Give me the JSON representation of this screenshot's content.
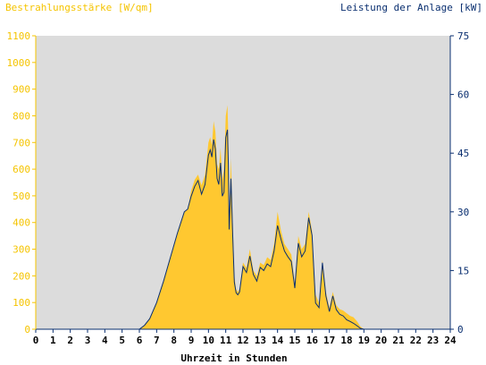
{
  "chart_data": {
    "type": "area",
    "title_left": "Bestrahlungsstärke [W/qm]",
    "title_right": "Leistung der Anlage [kW]",
    "xlabel": "Uhrzeit in Stunden",
    "xlim": [
      0,
      24
    ],
    "x_ticks": [
      "0",
      "1",
      "2",
      "3",
      "4",
      "5",
      "6",
      "7",
      "8",
      "9",
      "10",
      "11",
      "12",
      "13",
      "14",
      "15",
      "16",
      "17",
      "18",
      "19",
      "20",
      "21",
      "22",
      "23",
      "24"
    ],
    "y_left": {
      "lim": [
        0,
        1100
      ],
      "ticks": [
        "0",
        "100",
        "200",
        "300",
        "400",
        "500",
        "600",
        "700",
        "800",
        "900",
        "1000",
        "1100"
      ],
      "color": "#f5c400"
    },
    "y_right": {
      "lim": [
        0,
        75
      ],
      "ticks": [
        "0",
        "15",
        "30",
        "45",
        "60",
        "75"
      ],
      "color": "#0a2f70"
    },
    "plot_background": "#dcdcdc",
    "series": [
      {
        "name": "Bestrahlungsstärke",
        "axis": "left",
        "style": "area",
        "color": "#ffc830",
        "x": [
          0,
          6.0,
          6.3,
          6.6,
          7.0,
          7.4,
          7.8,
          8.2,
          8.6,
          8.8,
          9.0,
          9.2,
          9.4,
          9.6,
          9.8,
          10.0,
          10.1,
          10.2,
          10.3,
          10.4,
          10.5,
          10.6,
          10.7,
          10.8,
          10.9,
          11.0,
          11.1,
          11.15,
          11.2,
          11.3,
          11.4,
          11.5,
          11.6,
          11.7,
          11.8,
          12.0,
          12.2,
          12.4,
          12.6,
          12.8,
          13.0,
          13.2,
          13.4,
          13.6,
          13.8,
          14.0,
          14.2,
          14.4,
          14.6,
          14.8,
          15.0,
          15.2,
          15.4,
          15.6,
          15.8,
          16.0,
          16.2,
          16.4,
          16.6,
          16.8,
          17.0,
          17.2,
          17.4,
          17.6,
          17.8,
          18.0,
          18.2,
          18.4,
          18.6,
          18.8,
          19.0,
          24
        ],
        "values": [
          0,
          0,
          15,
          40,
          100,
          180,
          270,
          360,
          440,
          450,
          520,
          560,
          580,
          540,
          580,
          700,
          720,
          690,
          780,
          740,
          620,
          600,
          680,
          560,
          600,
          800,
          840,
          720,
          420,
          640,
          420,
          200,
          150,
          140,
          150,
          250,
          230,
          300,
          220,
          200,
          250,
          240,
          270,
          260,
          320,
          440,
          370,
          320,
          300,
          280,
          170,
          350,
          300,
          320,
          440,
          370,
          130,
          100,
          260,
          140,
          80,
          140,
          90,
          75,
          70,
          60,
          50,
          45,
          30,
          10,
          0,
          0
        ]
      },
      {
        "name": "Leistung der Anlage",
        "axis": "right",
        "style": "line",
        "color": "#0a2f70",
        "x": [
          0,
          6.0,
          6.3,
          6.6,
          7.0,
          7.4,
          7.8,
          8.2,
          8.6,
          8.8,
          9.0,
          9.2,
          9.4,
          9.6,
          9.8,
          10.0,
          10.1,
          10.2,
          10.3,
          10.4,
          10.5,
          10.6,
          10.7,
          10.8,
          10.9,
          11.0,
          11.1,
          11.15,
          11.2,
          11.3,
          11.4,
          11.5,
          11.6,
          11.7,
          11.8,
          12.0,
          12.2,
          12.4,
          12.6,
          12.8,
          13.0,
          13.2,
          13.4,
          13.6,
          13.8,
          14.0,
          14.2,
          14.4,
          14.6,
          14.8,
          15.0,
          15.2,
          15.4,
          15.6,
          15.8,
          16.0,
          16.2,
          16.4,
          16.6,
          16.8,
          17.0,
          17.2,
          17.4,
          17.6,
          17.8,
          18.0,
          18.2,
          18.4,
          18.6,
          18.8,
          19.0,
          24
        ],
        "values": [
          0,
          0,
          1,
          2.7,
          6.8,
          12.3,
          18.4,
          24.5,
          30,
          30.7,
          34,
          36.5,
          38,
          34.5,
          37,
          44.5,
          45.8,
          44,
          48.5,
          46,
          38.5,
          37,
          42.5,
          34,
          35,
          49,
          51,
          42,
          25.5,
          38.5,
          24.5,
          12,
          9.3,
          8.8,
          9.5,
          16,
          14.5,
          18.7,
          14,
          12.3,
          15.8,
          15,
          16.7,
          16,
          20,
          26.5,
          23,
          20,
          18.5,
          17.3,
          10.5,
          22,
          18.5,
          20,
          28.5,
          24,
          6.7,
          5.5,
          17,
          8.5,
          4.5,
          8.5,
          5,
          3.8,
          3.4,
          2.4,
          2,
          1.5,
          0.9,
          0.2,
          0,
          0
        ]
      }
    ],
    "grid": false,
    "legend": "none"
  }
}
